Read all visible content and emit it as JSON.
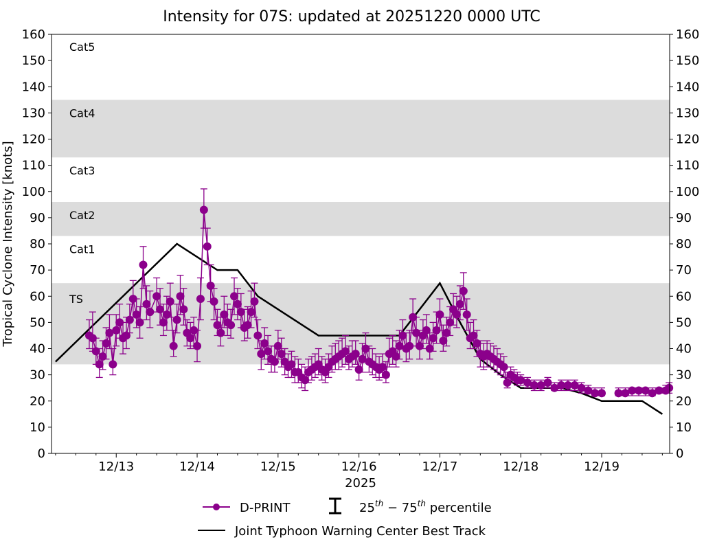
{
  "chart_data": {
    "type": "line",
    "title": "Intensity for 07S: updated at 20251220 0000 UTC",
    "xlabel": "2025",
    "ylabel": "Tropical Cyclone Intensity [knots]",
    "ylim": [
      0,
      160
    ],
    "xlim": [
      "12/12 04:48",
      "12/19 20:10"
    ],
    "yticks": [
      0,
      10,
      20,
      30,
      40,
      50,
      60,
      70,
      80,
      90,
      100,
      110,
      120,
      130,
      140,
      150,
      160
    ],
    "xticks": [
      {
        "label": "12/13",
        "t": "12/13 00:00"
      },
      {
        "label": "12/14",
        "t": "12/14 00:00"
      },
      {
        "label": "12/15",
        "t": "12/15 00:00"
      },
      {
        "label": "12/16",
        "t": "12/16 00:00"
      },
      {
        "label": "12/17",
        "t": "12/17 00:00"
      },
      {
        "label": "12/18",
        "t": "12/18 00:00"
      },
      {
        "label": "12/19",
        "t": "12/19 00:00"
      }
    ],
    "grid": false,
    "legend_placement": "bottom-center",
    "categories_bands": [
      {
        "label": "TS",
        "lo": 34,
        "hi": 64,
        "shaded": true
      },
      {
        "label": "Cat1",
        "lo": 64,
        "hi": 83,
        "shaded": false
      },
      {
        "label": "Cat2",
        "lo": 83,
        "hi": 96,
        "shaded": true
      },
      {
        "label": "Cat3",
        "lo": 96,
        "hi": 113,
        "shaded": false
      },
      {
        "label": "Cat4",
        "lo": 113,
        "hi": 135,
        "shaded": true
      },
      {
        "label": "Cat5",
        "lo": 135,
        "hi": 160,
        "shaded": false
      }
    ],
    "colors": {
      "dprint": "#8b008b",
      "best_track": "#000000",
      "band": "#dcdcdc"
    },
    "legend": {
      "dprint": "D-PRINT",
      "percentile_sup1": "th",
      "percentile_pre": "25",
      "percentile_mid": " − 75",
      "percentile_sup2": "th",
      "percentile_post": " percentile",
      "best_track": "Joint Typhoon Warning Center Best Track"
    },
    "series": [
      {
        "name": "Joint Typhoon Warning Center Best Track",
        "points": [
          [
            "12/12 06:00",
            35
          ],
          [
            "12/13 18:00",
            80
          ],
          [
            "12/14 06:00",
            70
          ],
          [
            "12/14 12:00",
            70
          ],
          [
            "12/14 18:00",
            60
          ],
          [
            "12/15 12:00",
            45
          ],
          [
            "12/16 12:00",
            45
          ],
          [
            "12/17 00:00",
            65
          ],
          [
            "12/17 06:00",
            50
          ],
          [
            "12/17 12:00",
            36
          ],
          [
            "12/17 18:00",
            30
          ],
          [
            "12/18 00:00",
            25
          ],
          [
            "12/18 12:00",
            25
          ],
          [
            "12/18 18:00",
            23
          ],
          [
            "12/19 00:00",
            20
          ],
          [
            "12/19 12:00",
            20
          ],
          [
            "12/19 18:00",
            15
          ]
        ]
      },
      {
        "name": "D-PRINT",
        "columns": [
          "time",
          "value",
          "p25",
          "p75"
        ],
        "points": [
          [
            "12/12 16:00",
            45,
            40,
            51
          ],
          [
            "12/12 17:00",
            44,
            39,
            54
          ],
          [
            "12/12 18:00",
            39,
            34,
            44
          ],
          [
            "12/12 19:00",
            34,
            29,
            40
          ],
          [
            "12/12 20:00",
            37,
            32,
            43
          ],
          [
            "12/12 21:00",
            42,
            36,
            48
          ],
          [
            "12/12 22:00",
            46,
            40,
            53
          ],
          [
            "12/12 23:00",
            34,
            30,
            40
          ],
          [
            "12/13 00:00",
            47,
            41,
            53
          ],
          [
            "12/13 01:00",
            50,
            44,
            57
          ],
          [
            "12/13 02:00",
            44,
            38,
            50
          ],
          [
            "12/13 03:00",
            45,
            40,
            52
          ],
          [
            "12/13 04:00",
            51,
            46,
            57
          ],
          [
            "12/13 05:00",
            59,
            52,
            66
          ],
          [
            "12/13 06:00",
            53,
            48,
            59
          ],
          [
            "12/13 07:00",
            50,
            44,
            56
          ],
          [
            "12/13 08:00",
            72,
            63,
            79
          ],
          [
            "12/13 09:00",
            57,
            51,
            64
          ],
          [
            "12/13 10:00",
            54,
            48,
            62
          ],
          [
            "12/13 12:00",
            60,
            54,
            67
          ],
          [
            "12/13 13:00",
            55,
            49,
            63
          ],
          [
            "12/13 14:00",
            50,
            45,
            57
          ],
          [
            "12/13 15:00",
            53,
            47,
            60
          ],
          [
            "12/13 16:00",
            58,
            52,
            65
          ],
          [
            "12/13 17:00",
            41,
            37,
            47
          ],
          [
            "12/13 18:00",
            51,
            46,
            57
          ],
          [
            "12/13 19:00",
            60,
            53,
            68
          ],
          [
            "12/13 20:00",
            55,
            49,
            63
          ],
          [
            "12/13 21:00",
            46,
            41,
            51
          ],
          [
            "12/13 22:00",
            44,
            40,
            50
          ],
          [
            "12/13 23:00",
            47,
            41,
            52
          ],
          [
            "12/14 00:00",
            41,
            35,
            47
          ],
          [
            "12/14 01:00",
            59,
            51,
            67
          ],
          [
            "12/14 02:00",
            93,
            86,
            101
          ],
          [
            "12/14 03:00",
            79,
            72,
            86
          ],
          [
            "12/14 04:00",
            64,
            58,
            72
          ],
          [
            "12/14 05:00",
            58,
            51,
            63
          ],
          [
            "12/14 06:00",
            49,
            45,
            55
          ],
          [
            "12/14 07:00",
            46,
            41,
            52
          ],
          [
            "12/14 08:00",
            53,
            48,
            60
          ],
          [
            "12/14 09:00",
            50,
            45,
            57
          ],
          [
            "12/14 10:00",
            49,
            44,
            55
          ],
          [
            "12/14 11:00",
            60,
            53,
            67
          ],
          [
            "12/14 12:00",
            57,
            51,
            63
          ],
          [
            "12/14 13:00",
            54,
            48,
            61
          ],
          [
            "12/14 14:00",
            48,
            43,
            55
          ],
          [
            "12/14 15:00",
            49,
            44,
            56
          ],
          [
            "12/14 16:00",
            54,
            48,
            62
          ],
          [
            "12/14 17:00",
            58,
            52,
            65
          ],
          [
            "12/14 18:00",
            45,
            40,
            51
          ],
          [
            "12/14 19:00",
            38,
            32,
            43
          ],
          [
            "12/14 20:00",
            42,
            36,
            48
          ],
          [
            "12/14 21:00",
            39,
            34,
            45
          ],
          [
            "12/14 22:00",
            36,
            31,
            41
          ],
          [
            "12/14 23:00",
            35,
            31,
            41
          ],
          [
            "12/15 00:00",
            41,
            36,
            47
          ],
          [
            "12/15 01:00",
            38,
            33,
            44
          ],
          [
            "12/15 02:00",
            35,
            30,
            40
          ],
          [
            "12/15 03:00",
            33,
            29,
            38
          ],
          [
            "12/15 04:00",
            34,
            29,
            39
          ],
          [
            "12/15 05:00",
            31,
            27,
            37
          ],
          [
            "12/15 06:00",
            31,
            27,
            36
          ],
          [
            "12/15 07:00",
            29,
            25,
            34
          ],
          [
            "12/15 08:00",
            28,
            24,
            33
          ],
          [
            "12/15 09:00",
            31,
            27,
            36
          ],
          [
            "12/15 10:00",
            32,
            28,
            37
          ],
          [
            "12/15 11:00",
            33,
            29,
            38
          ],
          [
            "12/15 12:00",
            34,
            30,
            40
          ],
          [
            "12/15 13:00",
            32,
            28,
            37
          ],
          [
            "12/15 14:00",
            31,
            27,
            36
          ],
          [
            "12/15 15:00",
            33,
            29,
            38
          ],
          [
            "12/15 16:00",
            35,
            31,
            41
          ],
          [
            "12/15 17:00",
            36,
            32,
            42
          ],
          [
            "12/15 18:00",
            37,
            32,
            43
          ],
          [
            "12/15 19:00",
            38,
            33,
            44
          ],
          [
            "12/15 20:00",
            39,
            34,
            45
          ],
          [
            "12/15 21:00",
            36,
            32,
            41
          ],
          [
            "12/15 22:00",
            37,
            33,
            43
          ],
          [
            "12/15 23:00",
            38,
            34,
            43
          ],
          [
            "12/16 00:00",
            32,
            28,
            37
          ],
          [
            "12/16 01:00",
            36,
            31,
            42
          ],
          [
            "12/16 02:00",
            40,
            35,
            46
          ],
          [
            "12/16 03:00",
            35,
            31,
            41
          ],
          [
            "12/16 04:00",
            34,
            30,
            40
          ],
          [
            "12/16 05:00",
            33,
            29,
            38
          ],
          [
            "12/16 06:00",
            32,
            28,
            37
          ],
          [
            "12/16 07:00",
            33,
            29,
            38
          ],
          [
            "12/16 08:00",
            30,
            27,
            35
          ],
          [
            "12/16 09:00",
            38,
            33,
            44
          ],
          [
            "12/16 10:00",
            39,
            34,
            45
          ],
          [
            "12/16 11:00",
            37,
            33,
            43
          ],
          [
            "12/16 12:00",
            41,
            36,
            47
          ],
          [
            "12/16 13:00",
            45,
            40,
            51
          ],
          [
            "12/16 14:00",
            40,
            35,
            46
          ],
          [
            "12/16 15:00",
            41,
            36,
            47
          ],
          [
            "12/16 16:00",
            52,
            46,
            59
          ],
          [
            "12/16 17:00",
            46,
            41,
            52
          ],
          [
            "12/16 18:00",
            41,
            36,
            47
          ],
          [
            "12/16 19:00",
            45,
            40,
            51
          ],
          [
            "12/16 20:00",
            47,
            42,
            53
          ],
          [
            "12/16 21:00",
            40,
            36,
            46
          ],
          [
            "12/16 22:00",
            44,
            39,
            50
          ],
          [
            "12/16 23:00",
            47,
            42,
            54
          ],
          [
            "12/17 00:00",
            53,
            47,
            59
          ],
          [
            "12/17 01:00",
            43,
            39,
            49
          ],
          [
            "12/17 02:00",
            46,
            41,
            52
          ],
          [
            "12/17 03:00",
            50,
            45,
            56
          ],
          [
            "12/17 04:00",
            55,
            49,
            61
          ],
          [
            "12/17 05:00",
            53,
            48,
            60
          ],
          [
            "12/17 06:00",
            57,
            51,
            64
          ],
          [
            "12/17 07:00",
            62,
            55,
            69
          ],
          [
            "12/17 08:00",
            53,
            47,
            59
          ],
          [
            "12/17 09:00",
            44,
            40,
            50
          ],
          [
            "12/17 10:00",
            45,
            40,
            51
          ],
          [
            "12/17 11:00",
            42,
            37,
            47
          ],
          [
            "12/17 12:00",
            38,
            33,
            43
          ],
          [
            "12/17 13:00",
            37,
            32,
            42
          ],
          [
            "12/17 14:00",
            38,
            33,
            43
          ],
          [
            "12/17 15:00",
            37,
            33,
            42
          ],
          [
            "12/17 16:00",
            36,
            32,
            41
          ],
          [
            "12/17 17:00",
            35,
            31,
            40
          ],
          [
            "12/17 18:00",
            34,
            30,
            38
          ],
          [
            "12/17 19:00",
            33,
            29,
            37
          ],
          [
            "12/17 20:00",
            27,
            25,
            31
          ],
          [
            "12/17 21:00",
            30,
            27,
            33
          ],
          [
            "12/17 22:00",
            29,
            27,
            32
          ],
          [
            "12/17 23:00",
            28,
            26,
            31
          ],
          [
            "12/18 00:00",
            28,
            26,
            30
          ],
          [
            "12/18 02:00",
            27,
            25,
            29
          ],
          [
            "12/18 04:00",
            26,
            24,
            28
          ],
          [
            "12/18 06:00",
            26,
            24,
            28
          ],
          [
            "12/18 08:00",
            27,
            25,
            29
          ],
          [
            "12/18 10:00",
            25,
            24,
            27
          ],
          [
            "12/18 12:00",
            26,
            24,
            28
          ],
          [
            "12/18 14:00",
            26,
            24,
            28
          ],
          [
            "12/18 16:00",
            26,
            24,
            28
          ],
          [
            "12/18 18:00",
            25,
            23,
            27
          ],
          [
            "12/18 20:00",
            24,
            23,
            26
          ],
          [
            "12/18 22:00",
            23,
            22,
            25
          ],
          [
            "12/19 00:00",
            23,
            22,
            25
          ],
          [
            "12/19 05:00",
            23,
            22,
            25
          ],
          [
            "12/19 07:00",
            23,
            22,
            25
          ],
          [
            "12/19 09:00",
            24,
            22,
            25
          ],
          [
            "12/19 11:00",
            24,
            22,
            25
          ],
          [
            "12/19 13:00",
            24,
            22,
            25
          ],
          [
            "12/19 15:00",
            23,
            22,
            25
          ],
          [
            "12/19 17:00",
            24,
            23,
            25
          ],
          [
            "12/19 19:00",
            24,
            23,
            26
          ],
          [
            "12/19 20:00",
            25,
            23,
            27
          ]
        ]
      }
    ]
  }
}
